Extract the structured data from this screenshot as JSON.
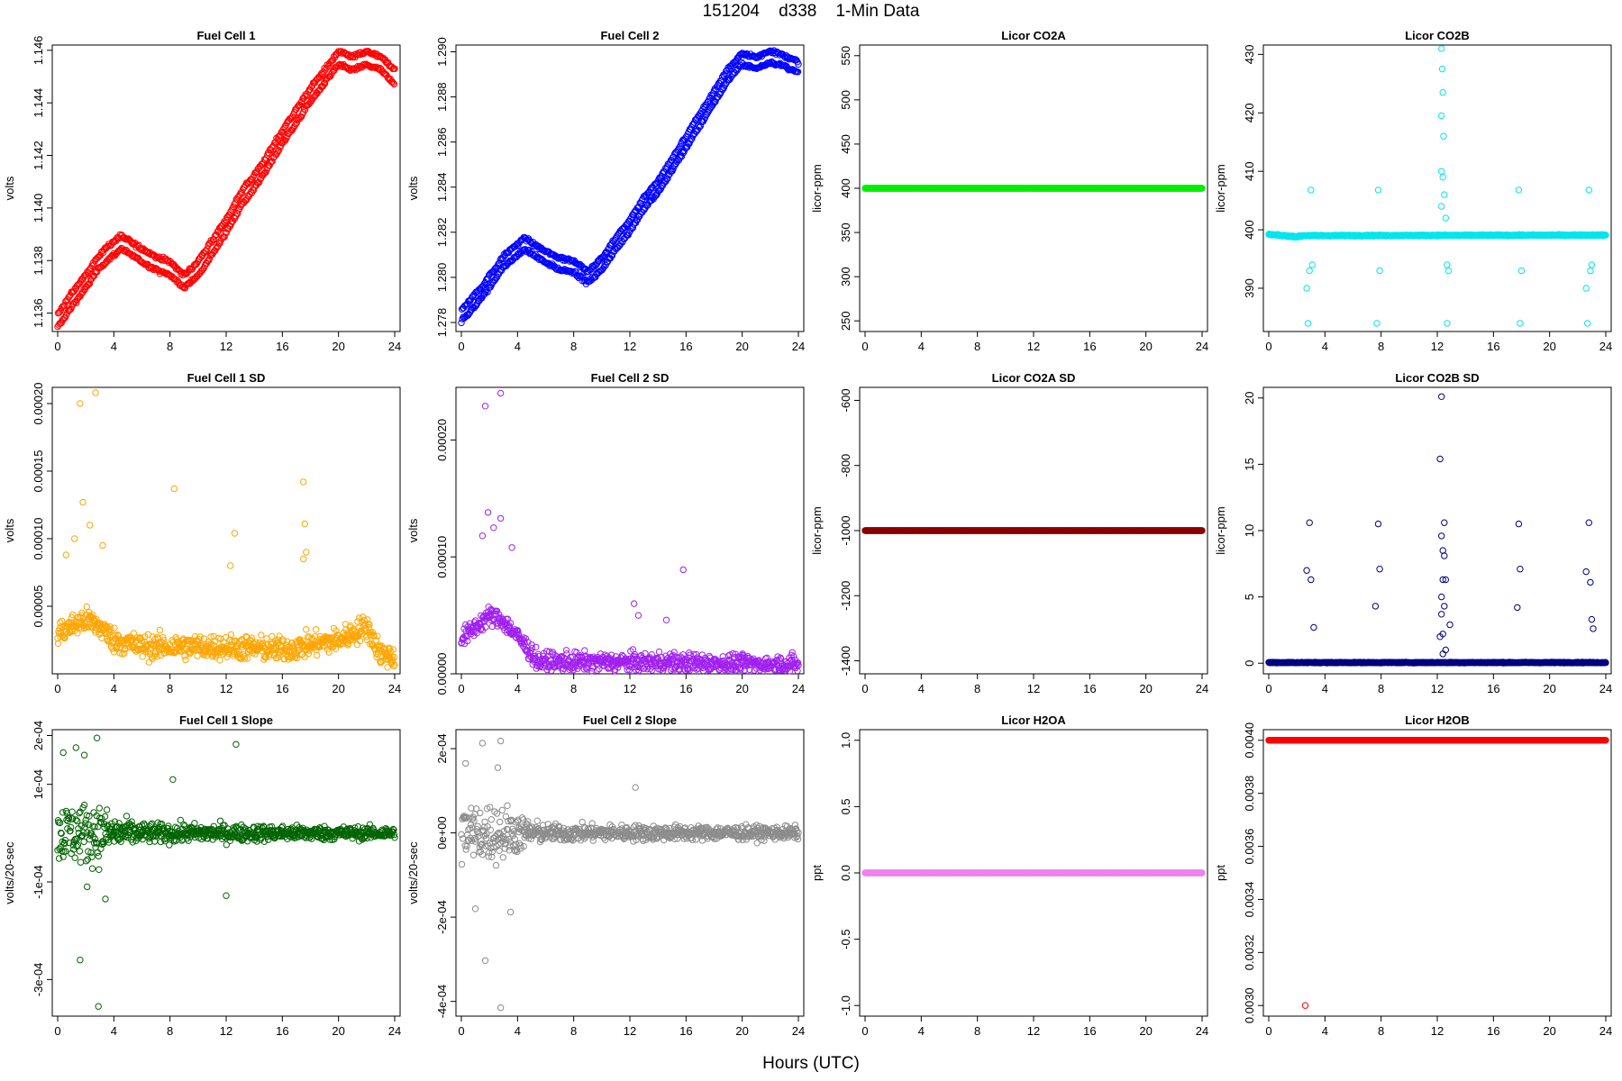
{
  "figure": {
    "title": "151204    d338    1-Min Data",
    "xlabel": "Hours (UTC)"
  },
  "chart_data": [
    {
      "name": "fc1",
      "type": "scatter",
      "title": "Fuel Cell 1",
      "ylabel": "volts",
      "color": "#ff0000",
      "xlim": [
        0,
        24
      ],
      "xticks": [
        0,
        4,
        8,
        12,
        16,
        20,
        24
      ],
      "ylim": [
        1.1353,
        1.1462
      ],
      "yticks": [
        1.136,
        1.138,
        1.14,
        1.142,
        1.144,
        1.146
      ],
      "yticklabels": [
        "1.136",
        "1.138",
        "1.140",
        "1.142",
        "1.144",
        "1.146"
      ],
      "profile": [
        [
          0,
          1.1357
        ],
        [
          1,
          1.1365
        ],
        [
          2,
          1.1372
        ],
        [
          3,
          1.138
        ],
        [
          4.5,
          1.1387
        ],
        [
          6,
          1.1382
        ],
        [
          7,
          1.1379
        ],
        [
          8,
          1.1377
        ],
        [
          9,
          1.1372
        ],
        [
          10,
          1.1377
        ],
        [
          11,
          1.1385
        ],
        [
          12,
          1.1393
        ],
        [
          13,
          1.1403
        ],
        [
          14,
          1.141
        ],
        [
          15,
          1.1418
        ],
        [
          16,
          1.1427
        ],
        [
          17,
          1.1435
        ],
        [
          18,
          1.1443
        ],
        [
          19,
          1.145
        ],
        [
          20,
          1.1457
        ],
        [
          21,
          1.1455
        ],
        [
          22,
          1.1457
        ],
        [
          23,
          1.1455
        ],
        [
          24,
          1.145
        ]
      ],
      "band": 0.00025,
      "noise": 7e-05,
      "outliers": []
    },
    {
      "name": "fc2",
      "type": "scatter",
      "title": "Fuel Cell 2",
      "ylabel": "volts",
      "color": "#0000ff",
      "xlim": [
        0,
        24
      ],
      "xticks": [
        0,
        4,
        8,
        12,
        16,
        20,
        24
      ],
      "ylim": [
        1.2776,
        1.2903
      ],
      "yticks": [
        1.278,
        1.28,
        1.282,
        1.284,
        1.286,
        1.288,
        1.29
      ],
      "yticklabels": [
        "1.278",
        "1.280",
        "1.282",
        "1.284",
        "1.286",
        "1.288",
        "1.290"
      ],
      "profile": [
        [
          0,
          1.2783
        ],
        [
          1,
          1.279
        ],
        [
          2,
          1.2798
        ],
        [
          3,
          1.2807
        ],
        [
          4.5,
          1.2815
        ],
        [
          6,
          1.2809
        ],
        [
          7,
          1.2806
        ],
        [
          8,
          1.2805
        ],
        [
          9,
          1.28
        ],
        [
          10,
          1.2806
        ],
        [
          11,
          1.2815
        ],
        [
          12,
          1.2823
        ],
        [
          13,
          1.2833
        ],
        [
          14,
          1.284
        ],
        [
          15,
          1.285
        ],
        [
          16,
          1.286
        ],
        [
          17,
          1.287
        ],
        [
          18,
          1.288
        ],
        [
          19,
          1.289
        ],
        [
          20,
          1.2897
        ],
        [
          21,
          1.2895
        ],
        [
          22,
          1.2898
        ],
        [
          23,
          1.2896
        ],
        [
          24,
          1.2893
        ]
      ],
      "band": 0.00025,
      "noise": 8e-05,
      "outliers": []
    },
    {
      "name": "co2a",
      "type": "scatter",
      "title": "Licor CO2A",
      "ylabel": "licor-ppm",
      "color": "#00ee00",
      "xlim": [
        0,
        24
      ],
      "xticks": [
        0,
        4,
        8,
        12,
        16,
        20,
        24
      ],
      "ylim": [
        238,
        562
      ],
      "yticks": [
        250,
        300,
        350,
        400,
        450,
        500,
        550
      ],
      "yticklabels": [
        "250",
        "300",
        "350",
        "400",
        "450",
        "500",
        "550"
      ],
      "profile": [
        [
          0,
          400
        ],
        [
          24,
          400
        ]
      ],
      "band": 0,
      "noise": 0,
      "outliers": []
    },
    {
      "name": "co2b",
      "type": "scatter",
      "title": "Licor CO2B",
      "ylabel": "licor-ppm",
      "color": "#00e5ee",
      "xlim": [
        0,
        24
      ],
      "xticks": [
        0,
        4,
        8,
        12,
        16,
        20,
        24
      ],
      "ylim": [
        382.6,
        431.6
      ],
      "yticks": [
        390,
        400,
        410,
        420,
        430
      ],
      "yticklabels": [
        "390",
        "400",
        "410",
        "420",
        "430"
      ],
      "profile": [
        [
          0,
          399.2
        ],
        [
          2,
          398.8
        ],
        [
          2.5,
          399.0
        ],
        [
          24,
          399.1
        ]
      ],
      "band": 0,
      "noise": 0.1,
      "outliers": [
        [
          2.8,
          384
        ],
        [
          2.9,
          393
        ],
        [
          3.0,
          406.8
        ],
        [
          2.7,
          390
        ],
        [
          3.1,
          394
        ],
        [
          7.7,
          384
        ],
        [
          7.8,
          406.8
        ],
        [
          7.9,
          393
        ],
        [
          12.3,
          431
        ],
        [
          12.35,
          427.5
        ],
        [
          12.4,
          423.5
        ],
        [
          12.3,
          419.5
        ],
        [
          12.45,
          416
        ],
        [
          12.3,
          410
        ],
        [
          12.4,
          409
        ],
        [
          12.5,
          406
        ],
        [
          12.3,
          404
        ],
        [
          12.6,
          402
        ],
        [
          12.7,
          394
        ],
        [
          12.8,
          393
        ],
        [
          12.7,
          384
        ],
        [
          17.8,
          406.8
        ],
        [
          17.9,
          384
        ],
        [
          18.0,
          393
        ],
        [
          22.7,
          384
        ],
        [
          22.8,
          406.8
        ],
        [
          22.9,
          393
        ],
        [
          23.0,
          394
        ],
        [
          22.6,
          390
        ]
      ]
    },
    {
      "name": "fc1sd",
      "type": "scatter",
      "title": "Fuel Cell 1 SD",
      "ylabel": "volts",
      "color": "#ffa500",
      "xlim": [
        0,
        24
      ],
      "xticks": [
        0,
        4,
        8,
        12,
        16,
        20,
        24
      ],
      "ylim": [
        0.0,
        0.000212
      ],
      "yticks": [
        5e-05,
        0.0001,
        0.00015,
        0.0002
      ],
      "yticklabels": [
        "0.00005",
        "0.00010",
        "0.00015",
        "0.00020"
      ],
      "profile": [
        [
          0,
          3e-05
        ],
        [
          2,
          4e-05
        ],
        [
          3,
          3.5e-05
        ],
        [
          4,
          2.5e-05
        ],
        [
          6,
          2e-05
        ],
        [
          12,
          2e-05
        ],
        [
          16,
          1.8e-05
        ],
        [
          20,
          2.5e-05
        ],
        [
          22,
          3.5e-05
        ],
        [
          23,
          1.5e-05
        ],
        [
          24,
          1.2e-05
        ]
      ],
      "band": 0,
      "noise": 9e-06,
      "outliers": [
        [
          1.6,
          0.0002
        ],
        [
          2.7,
          0.000208
        ],
        [
          1.8,
          0.000127
        ],
        [
          8.3,
          0.000137
        ],
        [
          12.6,
          0.000104
        ],
        [
          17.5,
          0.000142
        ],
        [
          17.6,
          0.000111
        ],
        [
          17.5,
          8.5e-05
        ],
        [
          17.7,
          9e-05
        ],
        [
          12.3,
          8e-05
        ],
        [
          1.2,
          0.0001
        ],
        [
          2.3,
          0.00011
        ],
        [
          3.2,
          9.5e-05
        ],
        [
          0.6,
          8.8e-05
        ]
      ]
    },
    {
      "name": "fc2sd",
      "type": "scatter",
      "title": "Fuel Cell 2 SD",
      "ylabel": "volts",
      "color": "#a020f0",
      "xlim": [
        0,
        24
      ],
      "xticks": [
        0,
        4,
        8,
        12,
        16,
        20,
        24
      ],
      "ylim": [
        0.0,
        0.000245
      ],
      "yticks": [
        0.0,
        0.0001,
        0.0002
      ],
      "yticklabels": [
        "0.00000",
        "0.00010",
        "0.00020"
      ],
      "profile": [
        [
          0,
          3e-05
        ],
        [
          2,
          5e-05
        ],
        [
          3,
          4.5e-05
        ],
        [
          4.5,
          2.5e-05
        ],
        [
          5.5,
          1e-05
        ],
        [
          12,
          1e-05
        ],
        [
          24,
          8e-06
        ]
      ],
      "band": 0,
      "noise": 8e-06,
      "outliers": [
        [
          1.7,
          0.000229
        ],
        [
          2.8,
          0.00024
        ],
        [
          1.9,
          0.000138
        ],
        [
          2.8,
          0.000133
        ],
        [
          2.3,
          0.000125
        ],
        [
          1.5,
          0.000118
        ],
        [
          12.3,
          6e-05
        ],
        [
          12.6,
          5e-05
        ],
        [
          15.8,
          8.9e-05
        ],
        [
          14.6,
          4.6e-05
        ],
        [
          3.6,
          0.000108
        ]
      ]
    },
    {
      "name": "co2asd",
      "type": "scatter",
      "title": "Licor CO2A SD",
      "ylabel": "licor-ppm",
      "color": "#8b0000",
      "xlim": [
        0,
        24
      ],
      "xticks": [
        0,
        4,
        8,
        12,
        16,
        20,
        24
      ],
      "ylim": [
        -1440,
        -560
      ],
      "yticks": [
        -1400,
        -1200,
        -1000,
        -800,
        -600
      ],
      "yticklabels": [
        "-1400",
        "-1200",
        "-1000",
        "-800",
        "-600"
      ],
      "profile": [
        [
          0,
          -1000
        ],
        [
          24,
          -1000
        ]
      ],
      "band": 0,
      "noise": 0,
      "outliers": []
    },
    {
      "name": "co2bsd",
      "type": "scatter",
      "title": "Licor CO2B SD",
      "ylabel": "licor-ppm",
      "color": "#000080",
      "xlim": [
        0,
        24
      ],
      "xticks": [
        0,
        4,
        8,
        12,
        16,
        20,
        24
      ],
      "ylim": [
        -0.8,
        20.8
      ],
      "yticks": [
        0,
        5,
        10,
        15,
        20
      ],
      "yticklabels": [
        "0",
        "5",
        "10",
        "15",
        "20"
      ],
      "profile": [
        [
          0,
          0.05
        ],
        [
          24,
          0.05
        ]
      ],
      "band": 0,
      "noise": 0.03,
      "outliers": [
        [
          2.7,
          7.0
        ],
        [
          2.9,
          10.6
        ],
        [
          3.0,
          6.3
        ],
        [
          3.2,
          2.7
        ],
        [
          7.6,
          4.3
        ],
        [
          7.8,
          10.5
        ],
        [
          7.9,
          7.1
        ],
        [
          12.3,
          20.1
        ],
        [
          12.2,
          15.4
        ],
        [
          12.3,
          9.6
        ],
        [
          12.4,
          8.5
        ],
        [
          12.5,
          10.6
        ],
        [
          12.5,
          8.1
        ],
        [
          12.4,
          6.3
        ],
        [
          12.3,
          5.0
        ],
        [
          12.5,
          4.3
        ],
        [
          12.6,
          6.3
        ],
        [
          12.3,
          3.7
        ],
        [
          12.4,
          2.2
        ],
        [
          12.2,
          2.0
        ],
        [
          12.6,
          1.0
        ],
        [
          12.4,
          0.7
        ],
        [
          12.9,
          2.9
        ],
        [
          17.7,
          4.2
        ],
        [
          17.9,
          7.1
        ],
        [
          17.8,
          10.5
        ],
        [
          22.6,
          6.9
        ],
        [
          22.8,
          10.6
        ],
        [
          22.9,
          6.1
        ],
        [
          23.0,
          3.3
        ],
        [
          23.1,
          2.6
        ]
      ]
    },
    {
      "name": "fc1slope",
      "type": "scatter",
      "title": "Fuel Cell 1 Slope",
      "ylabel": "volts/20-sec",
      "color": "#006400",
      "xlim": [
        0,
        24
      ],
      "xticks": [
        0,
        4,
        8,
        12,
        16,
        20,
        24
      ],
      "ylim": [
        -0.000375,
        0.000212
      ],
      "yticks": [
        -0.0003,
        -0.0001,
        0.0001,
        0.0002
      ],
      "yticklabels": [
        "-3e-04",
        "-1e-04",
        "1e-04",
        "2e-04"
      ],
      "profile": [
        [
          0,
          0
        ],
        [
          24,
          0
        ]
      ],
      "band": 0,
      "noise": 3e-05,
      "envelope": [
        [
          0,
          6e-05
        ],
        [
          3,
          6e-05
        ],
        [
          4,
          3.5e-05
        ],
        [
          6,
          2e-05
        ],
        [
          24,
          1.2e-05
        ]
      ],
      "outliers": [
        [
          1.6,
          -0.00026
        ],
        [
          2.9,
          -0.000355
        ],
        [
          3.4,
          -0.000135
        ],
        [
          1.3,
          0.000175
        ],
        [
          2.8,
          0.000195
        ],
        [
          12.7,
          0.000182
        ],
        [
          12.0,
          -0.000128
        ],
        [
          8.2,
          0.00011
        ],
        [
          0.4,
          0.000165
        ],
        [
          1.9,
          0.00016
        ],
        [
          2.1,
          -0.00011
        ]
      ]
    },
    {
      "name": "fc2slope",
      "type": "scatter",
      "title": "Fuel Cell 2 Slope",
      "ylabel": "volts/20-sec",
      "color": "#8c8c8c",
      "xlim": [
        0,
        24
      ],
      "xticks": [
        0,
        4,
        8,
        12,
        16,
        20,
        24
      ],
      "ylim": [
        -0.000435,
        0.000245
      ],
      "yticks": [
        -0.0004,
        -0.0002,
        0.0,
        0.0002
      ],
      "yticklabels": [
        "-4e-04",
        "-2e-04",
        "0e+00",
        "2e-04"
      ],
      "profile": [
        [
          0,
          0
        ],
        [
          24,
          0
        ]
      ],
      "band": 0,
      "noise": 3e-05,
      "envelope": [
        [
          0,
          7e-05
        ],
        [
          3,
          7e-05
        ],
        [
          4.5,
          3.5e-05
        ],
        [
          6,
          2e-05
        ],
        [
          24,
          1.5e-05
        ]
      ],
      "outliers": [
        [
          1.7,
          -0.000303
        ],
        [
          2.8,
          -0.000415
        ],
        [
          2.8,
          0.000218
        ],
        [
          1.5,
          0.000213
        ],
        [
          0.3,
          0.000165
        ],
        [
          3.5,
          -0.000188
        ],
        [
          2.6,
          0.000155
        ],
        [
          1.0,
          -0.00018
        ],
        [
          12.4,
          0.000108
        ]
      ]
    },
    {
      "name": "h2oa",
      "type": "scatter",
      "title": "Licor H2OA",
      "ylabel": "ppt",
      "color": "#ee82ee",
      "xlim": [
        0,
        24
      ],
      "xticks": [
        0,
        4,
        8,
        12,
        16,
        20,
        24
      ],
      "ylim": [
        -1.08,
        1.08
      ],
      "yticks": [
        -1.0,
        -0.5,
        0.0,
        0.5,
        1.0
      ],
      "yticklabels": [
        "-1.0",
        "-0.5",
        "0.0",
        "0.5",
        "1.0"
      ],
      "profile": [
        [
          0,
          0
        ],
        [
          24,
          0
        ]
      ],
      "band": 0,
      "noise": 0,
      "outliers": []
    },
    {
      "name": "h2ob",
      "type": "scatter",
      "title": "Licor H2OB",
      "ylabel": "ppt",
      "color": "#ff0000",
      "xlim": [
        0,
        24
      ],
      "xticks": [
        0,
        4,
        8,
        12,
        16,
        20,
        24
      ],
      "ylim": [
        0.00296,
        0.00404
      ],
      "yticks": [
        0.003,
        0.0032,
        0.0034,
        0.0036,
        0.0038,
        0.004
      ],
      "yticklabels": [
        "0.0030",
        "0.0032",
        "0.0034",
        "0.0036",
        "0.0038",
        "0.0040"
      ],
      "profile": [
        [
          0,
          0.004
        ],
        [
          24,
          0.004
        ]
      ],
      "band": 0,
      "noise": 0,
      "outliers": [
        [
          2.6,
          0.003
        ]
      ]
    }
  ]
}
